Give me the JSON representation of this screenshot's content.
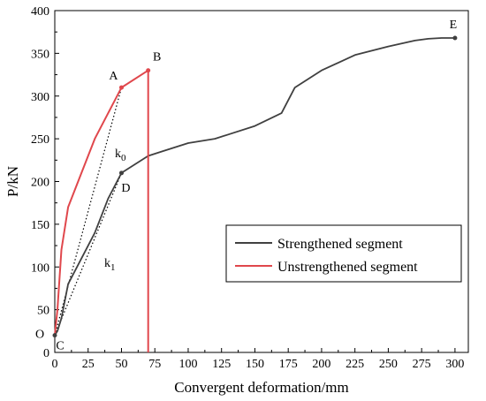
{
  "chart_data": {
    "type": "line",
    "title": "",
    "xlabel": "Convergent deformation/mm",
    "ylabel": "P/kN",
    "xlim": [
      0,
      310
    ],
    "ylim": [
      0,
      400
    ],
    "x_ticks": [
      0,
      25,
      50,
      75,
      100,
      125,
      150,
      175,
      200,
      225,
      250,
      275,
      300
    ],
    "y_ticks": [
      0,
      50,
      100,
      150,
      200,
      250,
      300,
      350,
      400
    ],
    "grid": false,
    "legend_position": "center-right",
    "series": [
      {
        "name": "Strengthened segment",
        "color": "#404040",
        "points": [
          [
            0,
            20
          ],
          [
            2,
            25
          ],
          [
            5,
            40
          ],
          [
            10,
            80
          ],
          [
            20,
            110
          ],
          [
            30,
            140
          ],
          [
            40,
            180
          ],
          [
            50,
            210
          ],
          [
            60,
            220
          ],
          [
            70,
            230
          ],
          [
            80,
            235
          ],
          [
            100,
            245
          ],
          [
            120,
            250
          ],
          [
            130,
            255
          ],
          [
            150,
            265
          ],
          [
            170,
            280
          ],
          [
            180,
            310
          ],
          [
            200,
            330
          ],
          [
            225,
            348
          ],
          [
            250,
            358
          ],
          [
            270,
            365
          ],
          [
            280,
            367
          ],
          [
            290,
            368
          ],
          [
            300,
            368
          ]
        ]
      },
      {
        "name": "Unstrengthened segment",
        "color": "#e0474c",
        "points": [
          [
            0,
            20
          ],
          [
            2,
            50
          ],
          [
            5,
            120
          ],
          [
            10,
            170
          ],
          [
            20,
            210
          ],
          [
            30,
            250
          ],
          [
            40,
            280
          ],
          [
            50,
            310
          ],
          [
            70,
            330
          ],
          [
            70,
            0
          ]
        ]
      }
    ],
    "tangent_lines": [
      {
        "label": "k0",
        "from": [
          0,
          20
        ],
        "to": [
          50,
          310
        ]
      },
      {
        "label": "k1",
        "from": [
          0,
          20
        ],
        "to": [
          50,
          210
        ]
      }
    ],
    "annotations": [
      {
        "text": "A",
        "x": 50,
        "y": 310
      },
      {
        "text": "B",
        "x": 70,
        "y": 330
      },
      {
        "text": "C",
        "x": 0,
        "y": 20
      },
      {
        "text": "D",
        "x": 50,
        "y": 210
      },
      {
        "text": "E",
        "x": 300,
        "y": 368
      },
      {
        "text": "O",
        "x": 0,
        "y": 20
      }
    ]
  }
}
